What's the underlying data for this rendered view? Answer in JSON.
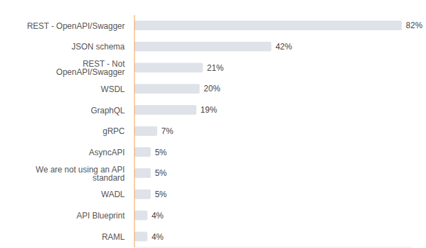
{
  "chart_data": {
    "type": "bar",
    "orientation": "horizontal",
    "categories": [
      "REST - OpenAPI/Swagger",
      "JSON schema",
      "REST - Not OpenAPI/Swagger",
      "WSDL",
      "GraphQL",
      "gRPC",
      "AsyncAPI",
      "We are not using an API standard",
      "WADL",
      "API Blueprint",
      "RAML"
    ],
    "values": [
      82,
      42,
      21,
      20,
      19,
      7,
      5,
      5,
      5,
      4,
      4
    ],
    "value_labels": [
      "82%",
      "42%",
      "21%",
      "20%",
      "19%",
      "7%",
      "5%",
      "5%",
      "5%",
      "4%",
      "4%"
    ],
    "data_labels": true,
    "tick_labels": "y",
    "xlim": [
      0,
      85
    ],
    "xticks": [],
    "color": "#dfe2e8"
  }
}
